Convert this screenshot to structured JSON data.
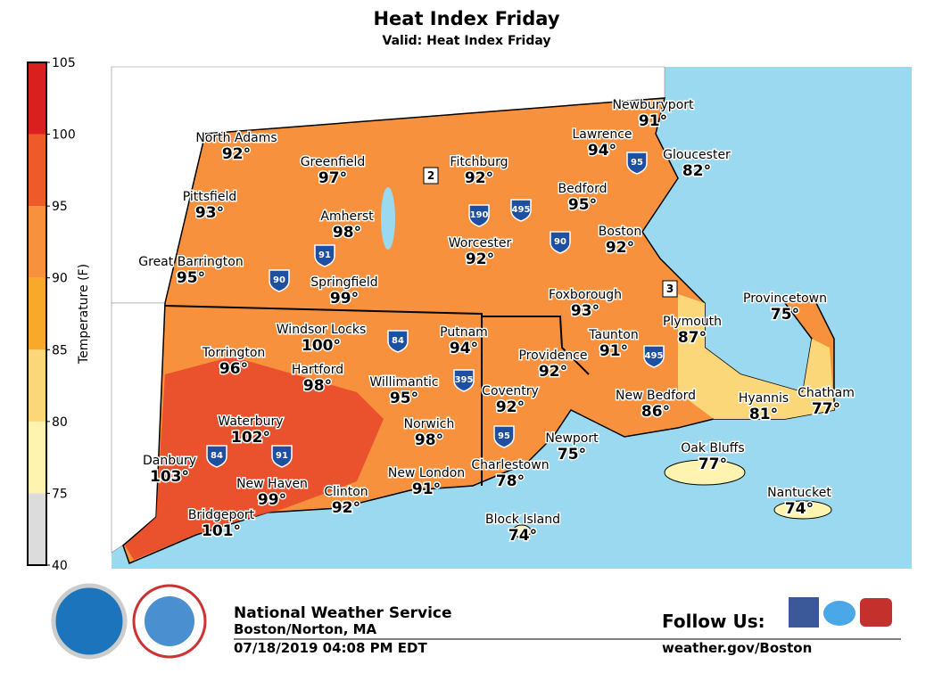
{
  "header": {
    "title": "Heat Index Friday",
    "subtitle": "Valid: Heat Index Friday"
  },
  "legend": {
    "label": "Temperature (F)",
    "ticks": [
      40,
      75,
      80,
      85,
      90,
      95,
      100,
      105
    ],
    "colors": [
      "#dcdcdc",
      "#fff3b0",
      "#fcd77a",
      "#f9a92a",
      "#f7913d",
      "#ee5a2a",
      "#d9201f"
    ]
  },
  "cities": [
    {
      "name": "North Adams",
      "temp": "92°"
    },
    {
      "name": "Greenfield",
      "temp": "97°"
    },
    {
      "name": "Fitchburg",
      "temp": "92°"
    },
    {
      "name": "Lawrence",
      "temp": "94°"
    },
    {
      "name": "Newburyport",
      "temp": "91°"
    },
    {
      "name": "Gloucester",
      "temp": "82°"
    },
    {
      "name": "Pittsfield",
      "temp": "93°"
    },
    {
      "name": "Bedford",
      "temp": "95°"
    },
    {
      "name": "Amherst",
      "temp": "98°"
    },
    {
      "name": "Worcester",
      "temp": "92°"
    },
    {
      "name": "Boston",
      "temp": "92°"
    },
    {
      "name": "Great Barrington",
      "temp": "95°"
    },
    {
      "name": "Springfield",
      "temp": "99°"
    },
    {
      "name": "Foxborough",
      "temp": "93°"
    },
    {
      "name": "Provincetown",
      "temp": "75°"
    },
    {
      "name": "Windsor Locks",
      "temp": "100°"
    },
    {
      "name": "Putnam",
      "temp": "94°"
    },
    {
      "name": "Plymouth",
      "temp": "87°"
    },
    {
      "name": "Torrington",
      "temp": "96°"
    },
    {
      "name": "Taunton",
      "temp": "91°"
    },
    {
      "name": "Providence",
      "temp": "92°"
    },
    {
      "name": "Hartford",
      "temp": "98°"
    },
    {
      "name": "Willimantic",
      "temp": "95°"
    },
    {
      "name": "Coventry",
      "temp": "92°"
    },
    {
      "name": "New Bedford",
      "temp": "86°"
    },
    {
      "name": "Hyannis",
      "temp": "81°"
    },
    {
      "name": "Chatham",
      "temp": "77°"
    },
    {
      "name": "Waterbury",
      "temp": "102°"
    },
    {
      "name": "Norwich",
      "temp": "98°"
    },
    {
      "name": "Newport",
      "temp": "75°"
    },
    {
      "name": "Oak Bluffs",
      "temp": "77°"
    },
    {
      "name": "Danbury",
      "temp": "103°"
    },
    {
      "name": "Charlestown",
      "temp": "78°"
    },
    {
      "name": "New London",
      "temp": "91°"
    },
    {
      "name": "New Haven",
      "temp": "99°"
    },
    {
      "name": "Clinton",
      "temp": "92°"
    },
    {
      "name": "Nantucket",
      "temp": "74°"
    },
    {
      "name": "Bridgeport",
      "temp": "101°"
    },
    {
      "name": "Block Island",
      "temp": "74°"
    }
  ],
  "routes": [
    "2",
    "190",
    "495",
    "90",
    "91",
    "90",
    "84",
    "395",
    "495",
    "95",
    "95",
    "84",
    "91",
    "3"
  ],
  "footer": {
    "agency": "National Weather Service",
    "office": "Boston/Norton, MA",
    "timestamp": "07/18/2019 04:08 PM EDT",
    "follow": "Follow Us:",
    "url": "weather.gov/Boston"
  }
}
